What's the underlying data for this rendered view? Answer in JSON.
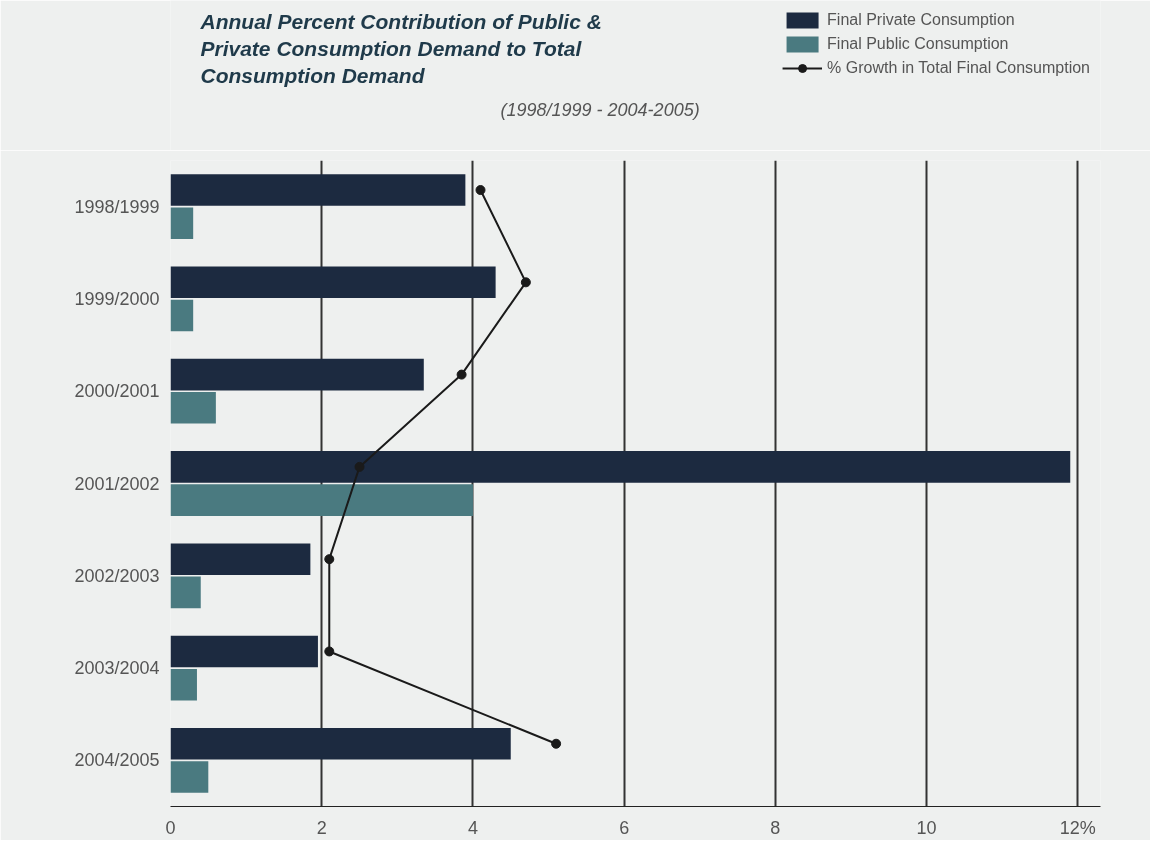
{
  "chart_data": {
    "type": "bar",
    "orientation": "horizontal",
    "title": "Annual Percent Contribution of Public & Private Consumption Demand to Total Consumption Demand",
    "subtitle": "(1998/1999 - 2004-2005)",
    "categories": [
      "1998/1999",
      "1999/2000",
      "2000/2001",
      "2001/2002",
      "2002/2003",
      "2003/2004",
      "2004/2005"
    ],
    "series": [
      {
        "name": "Final Private Consumption",
        "color": "#1c2a40",
        "values": [
          3.9,
          4.3,
          3.35,
          11.9,
          1.85,
          1.95,
          4.5
        ]
      },
      {
        "name": "Final Public Consumption",
        "color": "#4a7a80",
        "values": [
          0.3,
          0.3,
          0.6,
          4.0,
          0.4,
          0.35,
          0.5
        ]
      },
      {
        "name": "% Growth in Total Final Consumption",
        "type": "line",
        "color": "#1a1a1a",
        "marker": "circle",
        "values": [
          4.1,
          4.7,
          3.85,
          2.5,
          2.1,
          2.1,
          5.1
        ]
      }
    ],
    "xlim": [
      0,
      12.3
    ],
    "xticks": [
      0,
      2,
      4,
      6,
      8,
      10,
      {
        "value": 12,
        "label": "12%"
      }
    ],
    "grid": "x",
    "legend": "top right"
  }
}
